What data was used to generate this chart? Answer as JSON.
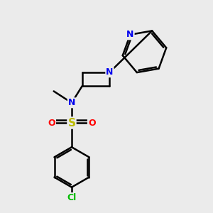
{
  "bg_color": "#ebebeb",
  "bond_color": "#000000",
  "bond_width": 1.8,
  "atom_colors": {
    "N": "#0000ee",
    "O": "#ff0000",
    "S": "#bbbb00",
    "Cl": "#00bb00",
    "C": "#000000"
  },
  "font_size": 9,
  "fig_size": [
    3.0,
    3.0
  ],
  "dpi": 100
}
